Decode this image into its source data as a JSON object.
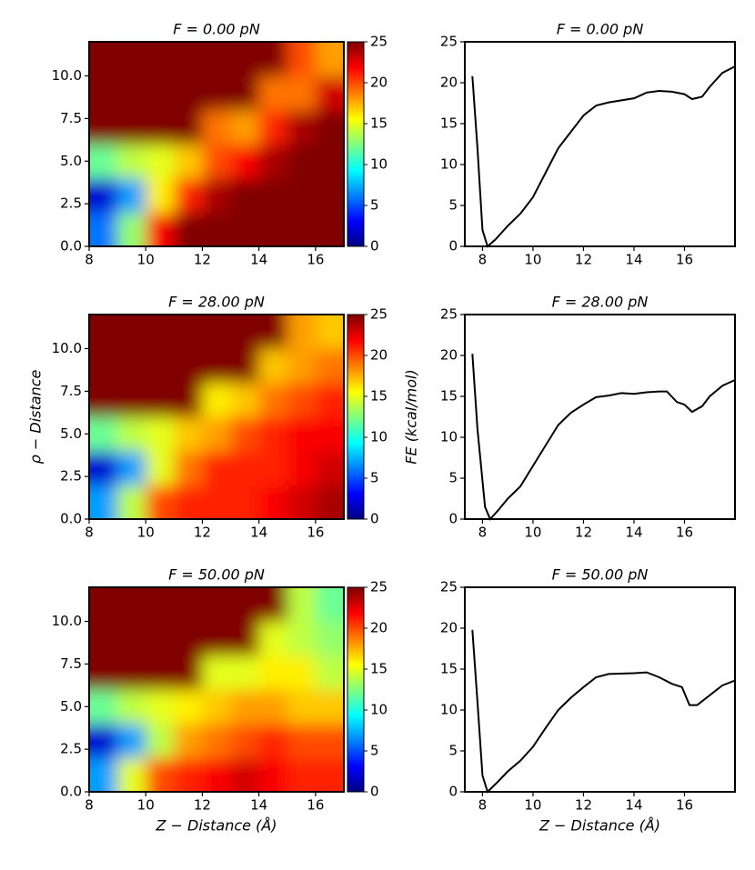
{
  "chart_data": [
    {
      "type": "heatmap",
      "title": "F = 0.00 pN",
      "colormap": "jet",
      "clim": [
        0,
        25
      ],
      "cticks": [
        0,
        5,
        10,
        15,
        20,
        25
      ],
      "x": [
        8.5,
        9.5,
        10.5,
        11.5,
        12.5,
        13.5,
        14.5,
        15.5,
        16.5
      ],
      "y": [
        1,
        3,
        5,
        7,
        9,
        11
      ],
      "z": [
        [
          6,
          13,
          22,
          25,
          25,
          25,
          25,
          25,
          25
        ],
        [
          2,
          7,
          16,
          21,
          24,
          25,
          25,
          25,
          25
        ],
        [
          12,
          14,
          15,
          17,
          20,
          22,
          24,
          25,
          25
        ],
        [
          25,
          25,
          25,
          25,
          19,
          18,
          21,
          24,
          25
        ],
        [
          25,
          25,
          25,
          25,
          25,
          25,
          19,
          19,
          23
        ],
        [
          25,
          25,
          25,
          25,
          25,
          25,
          25,
          20,
          18
        ]
      ],
      "xlim": [
        8,
        17
      ],
      "ylim": [
        0,
        12
      ],
      "xticks": [
        8,
        10,
        12,
        14,
        16
      ],
      "yticks": [
        {
          "value": 0,
          "label": "0.0"
        },
        {
          "value": 2.5,
          "label": "2.5"
        },
        {
          "value": 5,
          "label": "5.0"
        },
        {
          "value": 7.5,
          "label": "7.5"
        },
        {
          "value": 10,
          "label": "10.0"
        }
      ]
    },
    {
      "type": "line",
      "title": "F = 0.00 pN",
      "color": "#000000",
      "x": [
        7.6,
        7.8,
        8.0,
        8.2,
        8.5,
        9,
        9.5,
        10,
        10.5,
        11,
        11.5,
        12,
        12.5,
        13,
        14,
        14.5,
        15,
        15.5,
        16,
        16.3,
        16.7,
        17,
        17.5,
        18
      ],
      "values": [
        20.8,
        12,
        2,
        0,
        0.8,
        2.5,
        4,
        6,
        9,
        12,
        14,
        16,
        17.2,
        17.6,
        18.1,
        18.8,
        19,
        18.9,
        18.6,
        18,
        18.3,
        19.5,
        21.2,
        22
      ],
      "xlim": [
        7.3,
        18
      ],
      "ylim": [
        0,
        25
      ],
      "xticks": [
        8,
        10,
        12,
        14,
        16
      ],
      "yticks": [
        0,
        5,
        10,
        15,
        20,
        25
      ]
    },
    {
      "type": "heatmap",
      "title": "F = 28.00 pN",
      "ylabel": "ρ − Distance",
      "colormap": "jet",
      "clim": [
        0,
        25
      ],
      "cticks": [
        0,
        5,
        10,
        15,
        20,
        25
      ],
      "x": [
        8.5,
        9.5,
        10.5,
        11.5,
        12.5,
        13.5,
        14.5,
        15.5,
        16.5
      ],
      "y": [
        1,
        3,
        5,
        7,
        9,
        11
      ],
      "z": [
        [
          7,
          14,
          20,
          21,
          21,
          21,
          22,
          23,
          24
        ],
        [
          2,
          7,
          15,
          19,
          21,
          21,
          21,
          22,
          23
        ],
        [
          12,
          14,
          15,
          17,
          18,
          20,
          21,
          22,
          22
        ],
        [
          25,
          25,
          25,
          25,
          16,
          17,
          19,
          20,
          21
        ],
        [
          25,
          25,
          25,
          25,
          25,
          25,
          17,
          18,
          19
        ],
        [
          25,
          25,
          25,
          25,
          25,
          25,
          25,
          18,
          17
        ]
      ],
      "xlim": [
        8,
        17
      ],
      "ylim": [
        0,
        12
      ],
      "xticks": [
        8,
        10,
        12,
        14,
        16
      ],
      "yticks": [
        {
          "value": 0,
          "label": "0.0"
        },
        {
          "value": 2.5,
          "label": "2.5"
        },
        {
          "value": 5,
          "label": "5.0"
        },
        {
          "value": 7.5,
          "label": "7.5"
        },
        {
          "value": 10,
          "label": "10.0"
        }
      ]
    },
    {
      "type": "line",
      "title": "F = 28.00 pN",
      "ylabel": "FE (kcal/mol)",
      "color": "#000000",
      "x": [
        7.6,
        7.8,
        8.1,
        8.3,
        8.6,
        9,
        9.5,
        10,
        10.5,
        11,
        11.5,
        12,
        12.5,
        13,
        13.5,
        14,
        14.5,
        15,
        15.3,
        15.7,
        16,
        16.3,
        16.7,
        17,
        17.5,
        18
      ],
      "values": [
        20.2,
        11,
        1.5,
        0,
        1,
        2.5,
        4,
        6.5,
        9,
        11.5,
        13,
        14,
        14.9,
        15.1,
        15.4,
        15.3,
        15.5,
        15.6,
        15.6,
        14.3,
        14,
        13.1,
        13.8,
        15,
        16.3,
        17
      ],
      "xlim": [
        7.3,
        18
      ],
      "ylim": [
        0,
        25
      ],
      "xticks": [
        8,
        10,
        12,
        14,
        16
      ],
      "yticks": [
        0,
        5,
        10,
        15,
        20,
        25
      ]
    },
    {
      "type": "heatmap",
      "title": "F = 50.00 pN",
      "xlabel": "Z − Distance (Å)",
      "colormap": "jet",
      "clim": [
        0,
        25
      ],
      "cticks": [
        0,
        5,
        10,
        15,
        20,
        25
      ],
      "x": [
        8.5,
        9.5,
        10.5,
        11.5,
        12.5,
        13.5,
        14.5,
        15.5,
        16.5
      ],
      "y": [
        1,
        3,
        5,
        7,
        9,
        11
      ],
      "z": [
        [
          7,
          15,
          20,
          21,
          22,
          23,
          22,
          21,
          21
        ],
        [
          2,
          7,
          14,
          18,
          19,
          20,
          21,
          20,
          20
        ],
        [
          12,
          14,
          15,
          16,
          17,
          18,
          18,
          17,
          17
        ],
        [
          25,
          25,
          25,
          25,
          15,
          15,
          16,
          16,
          14
        ],
        [
          25,
          25,
          25,
          25,
          25,
          25,
          15,
          14,
          13
        ],
        [
          25,
          25,
          25,
          25,
          25,
          25,
          25,
          14,
          12
        ]
      ],
      "xlim": [
        8,
        17
      ],
      "ylim": [
        0,
        12
      ],
      "xticks": [
        8,
        10,
        12,
        14,
        16
      ],
      "yticks": [
        {
          "value": 0,
          "label": "0.0"
        },
        {
          "value": 2.5,
          "label": "2.5"
        },
        {
          "value": 5,
          "label": "5.0"
        },
        {
          "value": 7.5,
          "label": "7.5"
        },
        {
          "value": 10,
          "label": "10.0"
        }
      ]
    },
    {
      "type": "line",
      "title": "F = 50.00 pN",
      "xlabel": "Z − Distance (Å)",
      "color": "#000000",
      "x": [
        7.6,
        7.8,
        8.0,
        8.2,
        8.6,
        9,
        9.5,
        10,
        10.5,
        11,
        11.5,
        12,
        12.5,
        13,
        14,
        14.5,
        15,
        15.5,
        15.9,
        16.2,
        16.5,
        17,
        17.5,
        18
      ],
      "values": [
        19.8,
        11,
        2,
        0,
        1.2,
        2.5,
        3.8,
        5.5,
        7.8,
        10,
        11.5,
        12.8,
        14,
        14.4,
        14.5,
        14.6,
        14,
        13.2,
        12.8,
        10.6,
        10.6,
        11.8,
        13,
        13.6
      ],
      "xlim": [
        7.3,
        18
      ],
      "ylim": [
        0,
        25
      ],
      "xticks": [
        8,
        10,
        12,
        14,
        16
      ],
      "yticks": [
        0,
        5,
        10,
        15,
        20,
        25
      ]
    }
  ]
}
